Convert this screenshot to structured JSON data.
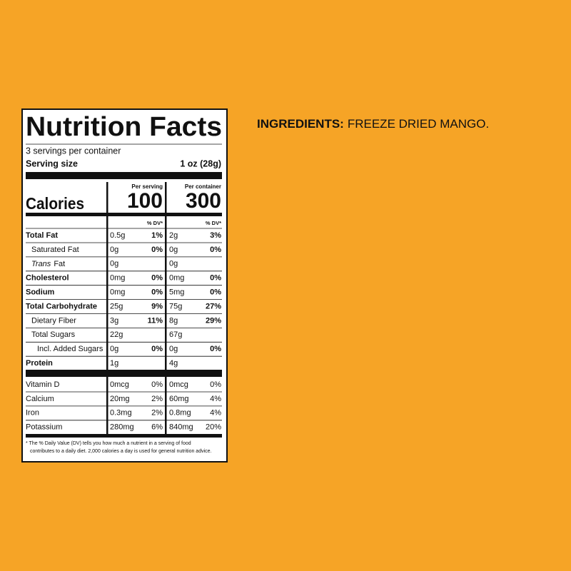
{
  "label": {
    "title": "Nutrition Facts",
    "servings": "3 servings per container",
    "serving_size_label": "Serving size",
    "serving_size_value": "1 oz (28g)",
    "calories_label": "Calories",
    "per_serving_label": "Per serving",
    "per_serving_calories": "100",
    "per_container_label": "Per container",
    "per_container_calories": "300",
    "dv_headers": [
      "% DV*",
      "% DV*"
    ],
    "nutrients": [
      {
        "name": "Total Fat",
        "bold": true,
        "indent": 0,
        "serving": [
          "0.5g",
          "1%"
        ],
        "container": [
          "2g",
          "3%"
        ]
      },
      {
        "name": "Saturated Fat",
        "bold": false,
        "indent": 1,
        "serving": [
          "0g",
          "0%"
        ],
        "container": [
          "0g",
          "0%"
        ]
      },
      {
        "name_italic": "Trans",
        "name": "Fat",
        "bold": false,
        "indent": 1,
        "serving": [
          "0g",
          null
        ],
        "container": [
          "0g",
          null
        ]
      },
      {
        "name": "Cholesterol",
        "bold": true,
        "indent": 0,
        "serving": [
          "0mg",
          "0%"
        ],
        "container": [
          "0mg",
          "0%"
        ]
      },
      {
        "name": "Sodium",
        "bold": true,
        "indent": 0,
        "serving": [
          "0mg",
          "0%"
        ],
        "container": [
          "5mg",
          "0%"
        ]
      },
      {
        "name": "Total Carbohydrate",
        "bold": true,
        "indent": 0,
        "serving": [
          "25g",
          "9%"
        ],
        "container": [
          "75g",
          "27%"
        ]
      },
      {
        "name": "Dietary Fiber",
        "bold": false,
        "indent": 1,
        "serving": [
          "3g",
          "11%"
        ],
        "container": [
          "8g",
          "29%"
        ]
      },
      {
        "name": "Total Sugars",
        "bold": false,
        "indent": 1,
        "serving": [
          "22g",
          null
        ],
        "container": [
          "67g",
          null
        ]
      },
      {
        "name": "Incl. Added Sugars",
        "bold": false,
        "indent": 2,
        "serving": [
          "0g",
          "0%"
        ],
        "container": [
          "0g",
          "0%"
        ]
      },
      {
        "name": "Protein",
        "bold": true,
        "indent": 0,
        "serving": [
          "1g",
          null
        ],
        "container": [
          "4g",
          null
        ]
      }
    ],
    "vitamins": [
      {
        "name": "Vitamin D",
        "serving": [
          "0mcg",
          "0%"
        ],
        "container": [
          "0mcg",
          "0%"
        ]
      },
      {
        "name": "Calcium",
        "serving": [
          "20mg",
          "2%"
        ],
        "container": [
          "60mg",
          "4%"
        ]
      },
      {
        "name": "Iron",
        "serving": [
          "0.3mg",
          "2%"
        ],
        "container": [
          "0.8mg",
          "4%"
        ]
      },
      {
        "name": "Potassium",
        "serving": [
          "280mg",
          "6%"
        ],
        "container": [
          "840mg",
          "20%"
        ]
      }
    ],
    "footnote": [
      "* The % Daily Value (DV) tells you how much a nutrient in a serving of food",
      "contributes to a daily diet. 2,000 calories a day is used for general nutrition advice."
    ]
  },
  "ingredients": {
    "label": "INGREDIENTS:",
    "text": "FREEZE DRIED MANGO."
  }
}
